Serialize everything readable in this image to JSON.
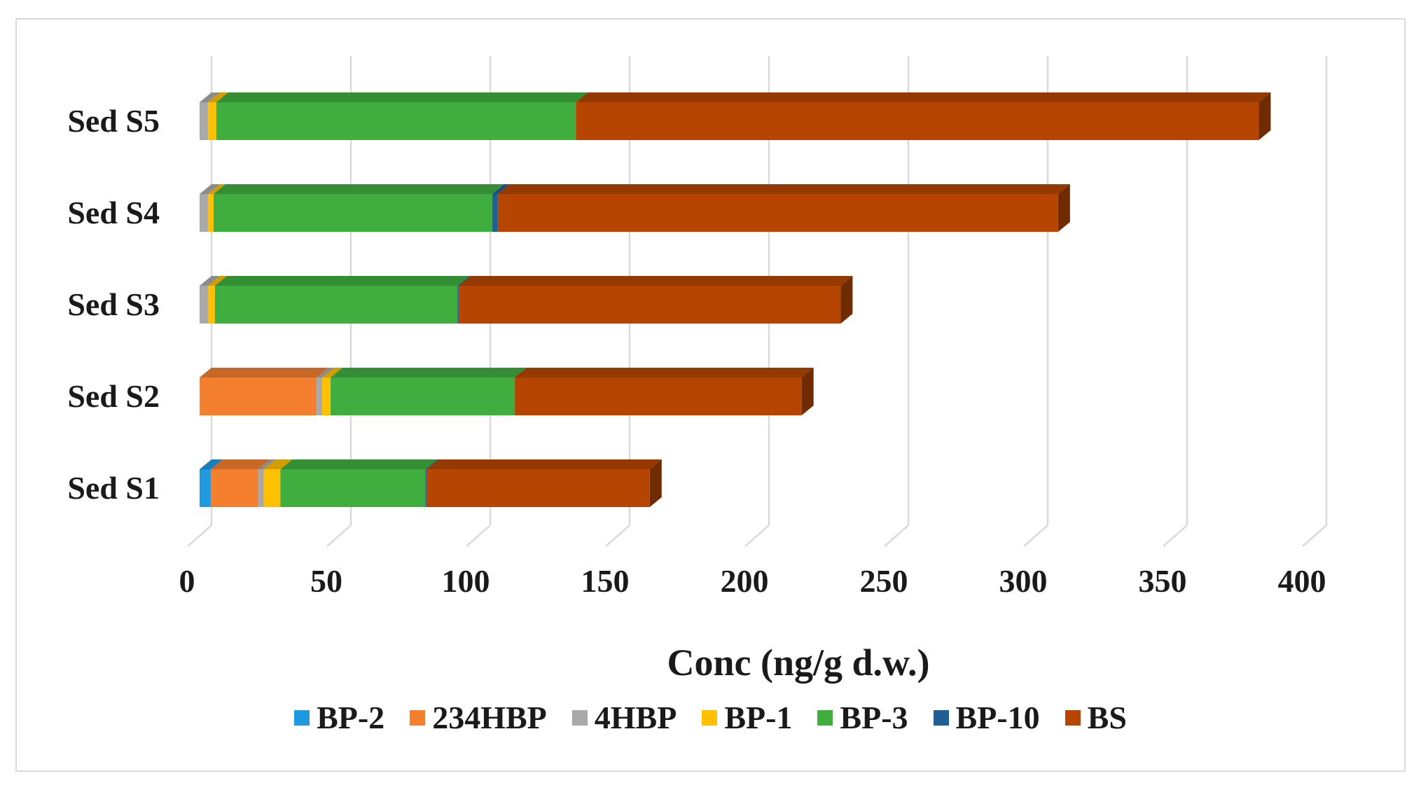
{
  "chart_data": {
    "type": "bar",
    "orientation": "horizontal",
    "stacked": true,
    "style": "3d",
    "categories": [
      "Sed S1",
      "Sed S2",
      "Sed S3",
      "Sed S4",
      "Sed S5"
    ],
    "series": [
      {
        "name": "BP-2",
        "color": "#1f9ae0",
        "values": [
          4,
          0,
          0,
          0,
          0
        ]
      },
      {
        "name": "234HBP",
        "color": "#f47f2e",
        "values": [
          17,
          42,
          0,
          0,
          0
        ]
      },
      {
        "name": "4HBP",
        "color": "#a9a9a9",
        "values": [
          2,
          2,
          3,
          3,
          3
        ]
      },
      {
        "name": "BP-1",
        "color": "#ffc000",
        "values": [
          6,
          3,
          2.5,
          2,
          3
        ]
      },
      {
        "name": "BP-3",
        "color": "#3fae3f",
        "values": [
          52,
          66,
          87,
          100,
          129
        ]
      },
      {
        "name": "BP-10",
        "color": "#1f5f96",
        "values": [
          0.5,
          0,
          0.5,
          2,
          0
        ]
      },
      {
        "name": "BS",
        "color": "#b54500",
        "values": [
          80,
          103,
          137,
          201,
          245
        ]
      }
    ],
    "xlabel": "Conc (ng/g d.w.)",
    "ylabel": "",
    "xlim": [
      0,
      400
    ],
    "xticks": [
      0,
      50,
      100,
      150,
      200,
      250,
      300,
      350,
      400
    ],
    "grid": true,
    "legend_position": "bottom"
  }
}
